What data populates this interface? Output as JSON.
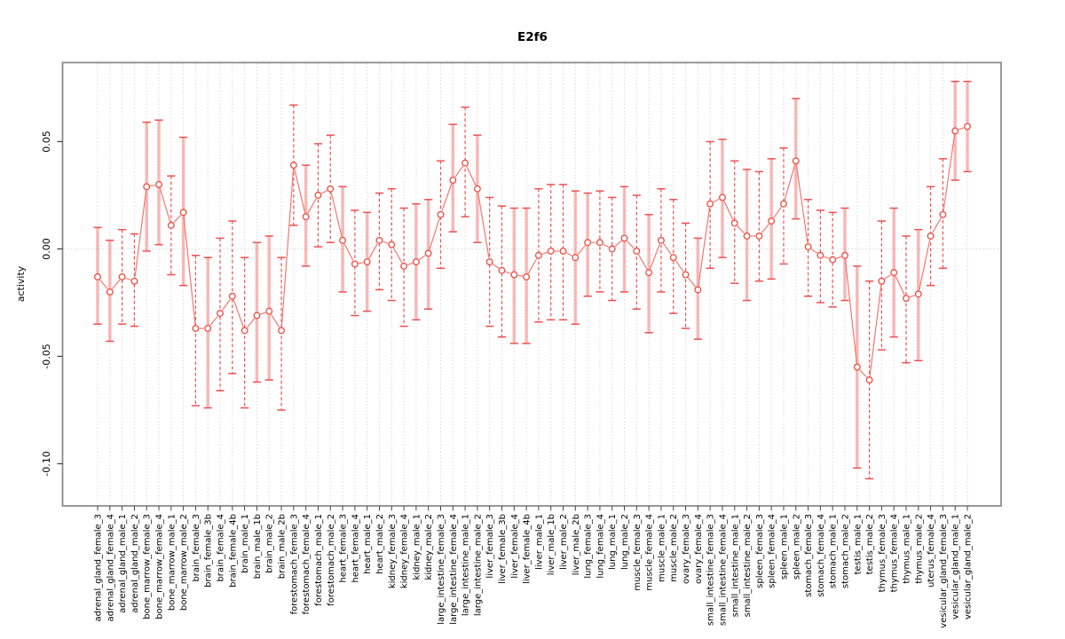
{
  "chart_data": {
    "type": "scatter",
    "title": "E2f6",
    "ylabel": "activity",
    "xlabel": "",
    "grid": "vertical-dotted",
    "zero_line": true,
    "legend": "none",
    "ylim": [
      -0.112,
      0.082
    ],
    "yticks": [
      {
        "value": 0.05,
        "label": "0.05"
      },
      {
        "value": 0.0,
        "label": "0.00"
      },
      {
        "value": -0.05,
        "label": "-0.05"
      },
      {
        "value": -0.1,
        "label": "-0.10"
      }
    ],
    "categories": [
      "adrenal_gland_female_3",
      "adrenal_gland_female_4",
      "adrenal_gland_male_1",
      "adrenal_gland_male_2",
      "bone_marrow_female_3",
      "bone_marrow_female_4",
      "bone_marrow_male_1",
      "bone_marrow_male_2",
      "brain_female_3",
      "brain_female_3b",
      "brain_female_4",
      "brain_female_4b",
      "brain_male_1",
      "brain_male_1b",
      "brain_male_2",
      "brain_male_2b",
      "forestomach_female_3",
      "forestomach_female_4",
      "forestomach_male_1",
      "forestomach_male_2",
      "heart_female_3",
      "heart_female_4",
      "heart_male_1",
      "heart_male_2",
      "kidney_female_3",
      "kidney_female_4",
      "kidney_male_1",
      "kidney_male_2",
      "large_intestine_female_3",
      "large_intestine_female_4",
      "large_intestine_male_1",
      "large_intestine_male_2",
      "liver_female_3",
      "liver_female_3b",
      "liver_female_4",
      "liver_female_4b",
      "liver_male_1",
      "liver_male_1b",
      "liver_male_2",
      "liver_male_2b",
      "lung_female_3",
      "lung_female_4",
      "lung_male_1",
      "lung_male_2",
      "muscle_female_3",
      "muscle_female_4",
      "muscle_male_1",
      "muscle_male_2",
      "ovary_female_3",
      "ovary_female_4",
      "small_intestine_female_3",
      "small_intestine_female_4",
      "small_intestine_male_1",
      "small_intestine_male_2",
      "spleen_female_3",
      "spleen_female_4",
      "spleen_male_1",
      "spleen_male_2",
      "stomach_female_3",
      "stomach_female_4",
      "stomach_male_1",
      "stomach_male_2",
      "testis_male_1",
      "testis_male_2",
      "thymus_female_3",
      "thymus_female_4",
      "thymus_male_1",
      "thymus_male_2",
      "uterus_female_4",
      "vesicular_gland_female_3",
      "vesicular_gland_male_1",
      "vesicular_gland_male_2"
    ],
    "series": [
      {
        "name": "activity",
        "values": [
          -0.013,
          -0.02,
          -0.013,
          -0.015,
          0.029,
          0.03,
          0.011,
          0.017,
          -0.037,
          -0.037,
          -0.03,
          -0.022,
          -0.038,
          -0.031,
          -0.029,
          -0.038,
          0.039,
          0.015,
          0.025,
          0.028,
          0.004,
          -0.007,
          -0.006,
          0.004,
          0.002,
          -0.008,
          -0.006,
          -0.002,
          0.016,
          0.032,
          0.04,
          0.028,
          -0.006,
          -0.01,
          -0.012,
          -0.013,
          -0.003,
          -0.001,
          -0.001,
          -0.004,
          0.003,
          0.003,
          0.0,
          0.005,
          -0.001,
          -0.011,
          0.004,
          -0.004,
          -0.012,
          -0.019,
          0.021,
          0.024,
          0.012,
          0.006,
          0.006,
          0.013,
          0.021,
          0.041,
          0.001,
          -0.003,
          -0.005,
          -0.003,
          -0.055,
          -0.061,
          -0.015,
          -0.011,
          -0.023,
          -0.021,
          0.006,
          0.016,
          0.055,
          0.057
        ],
        "err_lo": [
          -0.035,
          -0.043,
          -0.035,
          -0.036,
          -0.001,
          0.002,
          -0.012,
          -0.017,
          -0.073,
          -0.074,
          -0.066,
          -0.058,
          -0.074,
          -0.062,
          -0.061,
          -0.075,
          0.011,
          -0.008,
          0.001,
          0.003,
          -0.02,
          -0.031,
          -0.029,
          -0.019,
          -0.024,
          -0.036,
          -0.033,
          -0.028,
          -0.009,
          0.008,
          0.015,
          0.003,
          -0.036,
          -0.041,
          -0.044,
          -0.044,
          -0.034,
          -0.033,
          -0.033,
          -0.035,
          -0.022,
          -0.02,
          -0.024,
          -0.02,
          -0.028,
          -0.039,
          -0.02,
          -0.03,
          -0.037,
          -0.042,
          -0.009,
          -0.004,
          -0.016,
          -0.024,
          -0.015,
          -0.014,
          -0.007,
          0.014,
          -0.022,
          -0.025,
          -0.027,
          -0.024,
          -0.102,
          -0.107,
          -0.047,
          -0.041,
          -0.053,
          -0.052,
          -0.017,
          -0.009,
          0.032,
          0.036
        ],
        "err_hi": [
          0.01,
          0.004,
          0.009,
          0.007,
          0.059,
          0.06,
          0.034,
          0.052,
          -0.003,
          -0.004,
          0.005,
          0.013,
          -0.004,
          0.003,
          0.006,
          -0.004,
          0.067,
          0.039,
          0.049,
          0.053,
          0.029,
          0.018,
          0.017,
          0.026,
          0.028,
          0.019,
          0.021,
          0.023,
          0.041,
          0.058,
          0.066,
          0.053,
          0.024,
          0.02,
          0.019,
          0.019,
          0.028,
          0.03,
          0.03,
          0.027,
          0.026,
          0.027,
          0.024,
          0.029,
          0.025,
          0.016,
          0.028,
          0.023,
          0.012,
          0.005,
          0.05,
          0.051,
          0.041,
          0.037,
          0.036,
          0.042,
          0.047,
          0.07,
          0.023,
          0.018,
          0.017,
          0.019,
          -0.008,
          -0.015,
          0.013,
          0.019,
          0.006,
          0.009,
          0.029,
          0.042,
          0.078,
          0.078
        ],
        "bar_style": [
          "solid",
          "solid",
          "dashed",
          "dashed",
          "solid",
          "solid",
          "dashed",
          "solid",
          "dashed",
          "solid",
          "dashed",
          "dashed",
          "dashed",
          "solid",
          "solid",
          "dashed",
          "dashed",
          "solid",
          "dashed",
          "dashed",
          "solid",
          "dashed",
          "solid",
          "dashed",
          "dashed",
          "dashed",
          "solid",
          "solid",
          "dashed",
          "solid",
          "dashed",
          "solid",
          "dashed",
          "dashed",
          "solid",
          "solid",
          "dashed",
          "dashed",
          "dashed",
          "solid",
          "solid",
          "dashed",
          "dashed",
          "solid",
          "dashed",
          "solid",
          "dashed",
          "dashed",
          "dashed",
          "solid",
          "dashed",
          "solid",
          "dashed",
          "solid",
          "dashed",
          "solid",
          "dashed",
          "solid",
          "dashed",
          "dashed",
          "dashed",
          "solid",
          "solid",
          "dashed",
          "dashed",
          "solid",
          "dashed",
          "solid",
          "dashed",
          "dashed",
          "solid",
          "solid"
        ]
      }
    ],
    "colors": {
      "point": "#ee4b40",
      "connector": "#f4716a",
      "bar_solid": "rgba(239,90,85,0.40)",
      "bar_dashed": "#ee5050",
      "cap": "#ee5050",
      "grid": "#d4d4d4",
      "zero_line": "#d9d9d9",
      "axis": "#444444",
      "border": "#8c8c8c"
    }
  }
}
